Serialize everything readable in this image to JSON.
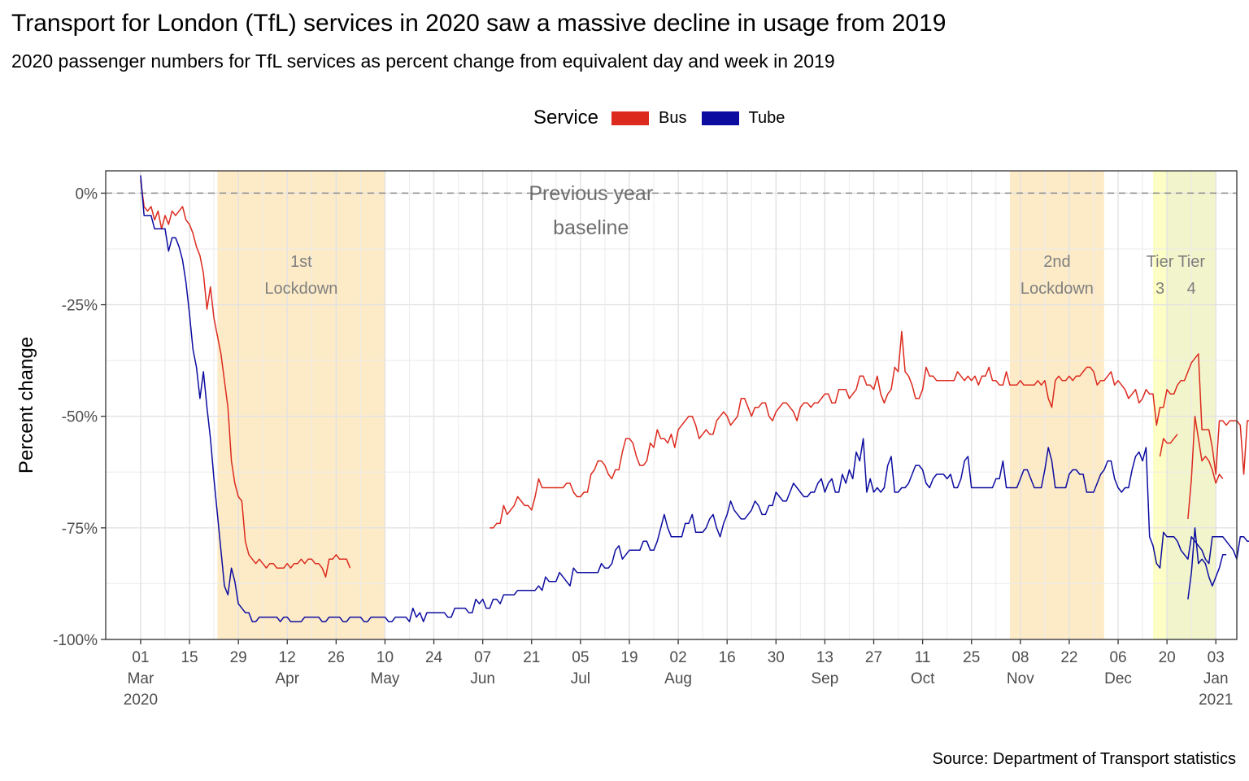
{
  "title": "Transport for London (TfL) services in 2020 saw a massive decline in usage from 2019",
  "subtitle": "2020 passenger numbers for TfL services as percent change from equivalent day and week in 2019",
  "legend": {
    "title": "Service",
    "items": [
      {
        "label": "Bus",
        "color": "#dc2a1e"
      },
      {
        "label": "Tube",
        "color": "#0c0ca0"
      }
    ]
  },
  "source": "Source: Department of Transport statistics",
  "chart_data": {
    "type": "line",
    "ylabel": "Percent change",
    "ylim": [
      -100,
      5
    ],
    "y_ticks": [
      0,
      -25,
      -50,
      -75,
      -100
    ],
    "y_tick_labels": [
      "0%",
      "-25%",
      "-50%",
      "-75%",
      "-100%"
    ],
    "xlim": [
      "2020-02-20",
      "2021-01-09"
    ],
    "x_ticks": [
      {
        "date": "2020-03-01",
        "lines": [
          "01",
          "Mar",
          "2020"
        ]
      },
      {
        "date": "2020-03-15",
        "lines": [
          "15"
        ]
      },
      {
        "date": "2020-03-29",
        "lines": [
          "29"
        ]
      },
      {
        "date": "2020-04-12",
        "lines": [
          "12",
          "Apr"
        ]
      },
      {
        "date": "2020-04-26",
        "lines": [
          "26"
        ]
      },
      {
        "date": "2020-05-10",
        "lines": [
          "10",
          "May"
        ]
      },
      {
        "date": "2020-05-24",
        "lines": [
          "24"
        ]
      },
      {
        "date": "2020-06-07",
        "lines": [
          "07",
          "Jun"
        ]
      },
      {
        "date": "2020-06-21",
        "lines": [
          "21"
        ]
      },
      {
        "date": "2020-07-05",
        "lines": [
          "05",
          "Jul"
        ]
      },
      {
        "date": "2020-07-19",
        "lines": [
          "19"
        ]
      },
      {
        "date": "2020-08-02",
        "lines": [
          "02",
          "Aug"
        ]
      },
      {
        "date": "2020-08-16",
        "lines": [
          "16"
        ]
      },
      {
        "date": "2020-08-30",
        "lines": [
          "30"
        ]
      },
      {
        "date": "2020-09-13",
        "lines": [
          "13",
          "Sep"
        ]
      },
      {
        "date": "2020-09-27",
        "lines": [
          "27"
        ]
      },
      {
        "date": "2020-10-11",
        "lines": [
          "11",
          "Oct"
        ]
      },
      {
        "date": "2020-10-25",
        "lines": [
          "25"
        ]
      },
      {
        "date": "2020-11-08",
        "lines": [
          "08",
          "Nov"
        ]
      },
      {
        "date": "2020-11-22",
        "lines": [
          "22"
        ]
      },
      {
        "date": "2020-12-06",
        "lines": [
          "06",
          "Dec"
        ]
      },
      {
        "date": "2020-12-20",
        "lines": [
          "20"
        ]
      },
      {
        "date": "2021-01-03",
        "lines": [
          "03",
          "Jan",
          "2021"
        ]
      }
    ],
    "grid": true,
    "legend_position": "top",
    "baseline": {
      "y": 0,
      "label_lines": [
        "Previous year",
        "baseline"
      ],
      "label_date": "2020-07-08"
    },
    "periods": [
      {
        "start": "2020-03-23",
        "end": "2020-05-10",
        "color": "#fdebc7",
        "label_lines": [
          "1st",
          "Lockdown"
        ]
      },
      {
        "start": "2020-11-05",
        "end": "2020-12-02",
        "color": "#fdebc7",
        "label_lines": [
          "2nd",
          "Lockdown"
        ]
      },
      {
        "start": "2020-12-16",
        "end": "2020-12-20",
        "color": "#fdfdc6",
        "label_lines": [
          "Tier",
          "3"
        ]
      },
      {
        "start": "2020-12-20",
        "end": "2021-01-03",
        "color": "#f2f5cb",
        "label_lines": [
          "Tier",
          "4"
        ]
      }
    ],
    "series": [
      {
        "name": "Bus",
        "color": "#dc2a1e",
        "segments": [
          {
            "start": "2020-03-01",
            "values": [
              3,
              -3,
              -4,
              -3,
              -6,
              -4,
              -8,
              -5,
              -7,
              -4,
              -5,
              -4,
              -3,
              -6,
              -7,
              -9,
              -12,
              -14,
              -18,
              -26,
              -21,
              -28,
              -32,
              -36,
              -42,
              -48,
              -60,
              -65,
              -68,
              -69,
              -78,
              -81,
              -82,
              -83,
              -82,
              -83,
              -84,
              -83,
              -83,
              -84,
              -84,
              -84,
              -83,
              -84,
              -83,
              -83,
              -82,
              -83,
              -82,
              -82,
              -83,
              -83,
              -84,
              -86,
              -82,
              -82,
              -81,
              -82,
              -82,
              -82,
              -84
            ]
          },
          {
            "start": "2020-06-09",
            "values": [
              -75,
              -75,
              -74,
              -74,
              -70,
              -72,
              -71,
              -70,
              -68,
              -69,
              -70,
              -70,
              -71,
              -68,
              -64,
              -66,
              -66,
              -66,
              -66,
              -66,
              -66,
              -66,
              -65,
              -65,
              -67,
              -68,
              -68,
              -67,
              -67,
              -63,
              -62,
              -60,
              -60,
              -61,
              -63,
              -64,
              -62,
              -62,
              -58,
              -55,
              -55,
              -56,
              -59,
              -61,
              -61,
              -60,
              -56,
              -57,
              -53,
              -55,
              -55,
              -56,
              -54,
              -57,
              -53,
              -52,
              -51,
              -50,
              -50,
              -52,
              -55,
              -54,
              -53,
              -54,
              -54,
              -51,
              -50,
              -49,
              -50,
              -52,
              -51,
              -50,
              -46,
              -46,
              -48,
              -50,
              -48,
              -48,
              -47,
              -47,
              -50,
              -51,
              -49,
              -48,
              -47,
              -47,
              -48,
              -49,
              -51,
              -48,
              -47,
              -47,
              -48,
              -47,
              -47,
              -46,
              -45,
              -45,
              -47,
              -47,
              -44,
              -44,
              -44,
              -46,
              -45,
              -44,
              -41,
              -41,
              -43,
              -43,
              -44,
              -41,
              -45,
              -47,
              -45,
              -44,
              -39,
              -40,
              -31,
              -40,
              -41,
              -43,
              -46,
              -46,
              -44,
              -39,
              -41,
              -41,
              -42,
              -42,
              -42,
              -42,
              -42,
              -42,
              -40,
              -41,
              -42,
              -41,
              -42,
              -41,
              -43,
              -41,
              -41,
              -39,
              -42,
              -42,
              -43,
              -43,
              -40,
              -43,
              -43,
              -43,
              -42,
              -43,
              -43,
              -43,
              -43,
              -42,
              -43,
              -42,
              -46,
              -48,
              -42,
              -41,
              -42,
              -42,
              -41,
              -42,
              -41,
              -41,
              -40,
              -39,
              -39,
              -40,
              -43,
              -42,
              -42,
              -41,
              -40,
              -43,
              -42,
              -43,
              -44,
              -46,
              -45,
              -44,
              -47,
              -46,
              -44,
              -45,
              -45,
              -52,
              -48,
              -48,
              -44,
              -45,
              -45,
              -43,
              -42,
              -42,
              -40,
              -38,
              -37,
              -36,
              -53,
              -53,
              -53,
              -57,
              -63,
              -51,
              -51,
              -52,
              -51,
              -51,
              -51,
              -52,
              -63,
              -51,
              -51,
              -51,
              -56,
              -62,
              -51,
              -51,
              -52,
              -51,
              -51,
              -51,
              -52,
              -52,
              -52,
              -57,
              -61,
              -51,
              -52,
              -48,
              -47,
              -44,
              -45,
              -42,
              -43,
              -44,
              -42,
              -43,
              -43,
              -41,
              -44,
              -42,
              -42,
              -41,
              -44,
              -41,
              -41,
              -41,
              -45,
              -44,
              -40,
              -43,
              -48,
              -46,
              -47,
              -51
            ]
          },
          {
            "start": "2020-12-18",
            "values": [
              -59,
              -55,
              -56,
              -56,
              -55,
              -54
            ]
          },
          {
            "start": "2020-12-26",
            "values": [
              -73,
              -64,
              -50,
              -55,
              -60,
              -59,
              -60,
              -62,
              -65,
              -63,
              -64
            ]
          }
        ]
      },
      {
        "name": "Tube",
        "color": "#0c0ca0",
        "segments": [
          {
            "start": "2020-03-01",
            "values": [
              4,
              -5,
              -5,
              -5,
              -8,
              -8,
              -8,
              -8,
              -13,
              -10,
              -10,
              -12,
              -15,
              -20,
              -27,
              -35,
              -39,
              -46,
              -40,
              -48,
              -55,
              -64,
              -72,
              -80,
              -88,
              -90,
              -84,
              -87,
              -92,
              -93,
              -94,
              -94,
              -96,
              -96,
              -95,
              -95,
              -95,
              -95,
              -95,
              -95,
              -96,
              -95,
              -95,
              -96,
              -96,
              -96,
              -96,
              -95,
              -95,
              -95,
              -95,
              -95,
              -96,
              -96,
              -95,
              -95,
              -95,
              -95,
              -96,
              -96,
              -95,
              -95,
              -95,
              -95,
              -96,
              -96,
              -95,
              -95,
              -95,
              -95,
              -95,
              -96,
              -96,
              -95,
              -95,
              -95,
              -95,
              -96,
              -93,
              -95,
              -94,
              -96,
              -94,
              -94,
              -94,
              -94,
              -94,
              -94,
              -95,
              -95,
              -93,
              -93,
              -93,
              -93,
              -94,
              -94,
              -91,
              -92,
              -91,
              -93,
              -93,
              -91,
              -91,
              -92,
              -90,
              -90,
              -90,
              -90,
              -89,
              -89,
              -89,
              -89,
              -89,
              -89,
              -88,
              -89,
              -86,
              -87,
              -87,
              -87,
              -85,
              -86,
              -87,
              -88,
              -84,
              -85,
              -85,
              -85,
              -85,
              -85,
              -85,
              -85,
              -83,
              -84,
              -84,
              -83,
              -80,
              -79,
              -82,
              -81,
              -80,
              -80,
              -80,
              -80,
              -78,
              -78,
              -80,
              -80,
              -78,
              -75,
              -72,
              -75,
              -77,
              -77,
              -77,
              -77,
              -74,
              -74,
              -72,
              -76,
              -76,
              -76,
              -75,
              -73,
              -72,
              -75,
              -77,
              -74,
              -72,
              -69,
              -71,
              -72,
              -73,
              -73,
              -72,
              -71,
              -69,
              -70,
              -72,
              -72,
              -70,
              -70,
              -67,
              -68,
              -69,
              -69,
              -67,
              -65,
              -66,
              -67,
              -68,
              -68,
              -67,
              -67,
              -65,
              -64,
              -67,
              -65,
              -64,
              -67,
              -67,
              -63,
              -65,
              -62,
              -64,
              -58,
              -60,
              -55,
              -67,
              -64,
              -67,
              -66,
              -67,
              -66,
              -61,
              -59,
              -67,
              -67,
              -66,
              -66,
              -65,
              -63,
              -61,
              -61,
              -62,
              -65,
              -66,
              -64,
              -63,
              -63,
              -63,
              -64,
              -63,
              -66,
              -66,
              -64,
              -60,
              -59,
              -66,
              -66,
              -66,
              -66,
              -66,
              -66,
              -66,
              -64,
              -64,
              -60,
              -66,
              -66,
              -66,
              -66,
              -64,
              -62,
              -62,
              -64,
              -66,
              -66,
              -66,
              -62,
              -57,
              -60,
              -66,
              -66,
              -66,
              -66,
              -63,
              -62,
              -62,
              -63,
              -63,
              -67,
              -67,
              -67,
              -65,
              -63,
              -62,
              -60,
              -60,
              -64,
              -66,
              -67,
              -66,
              -66,
              -62,
              -59,
              -58,
              -60,
              -57,
              -77,
              -79,
              -83,
              -84,
              -76,
              -77,
              -77,
              -77,
              -78,
              -80,
              -81,
              -82,
              -77,
              -78,
              -79,
              -80,
              -82,
              -83,
              -77,
              -77,
              -77,
              -77,
              -78,
              -79,
              -80,
              -82,
              -77,
              -77,
              -78,
              -78,
              -79,
              -80,
              -81,
              -79,
              -75,
              -70,
              -66,
              -66,
              -65,
              -62,
              -60,
              -59,
              -58,
              -57,
              -66,
              -66,
              -65,
              -65,
              -64,
              -61,
              -60,
              -59,
              -57,
              -60,
              -62,
              -64,
              -64,
              -66,
              -69,
              -70,
              -71,
              -71,
              -71,
              -72,
              -68,
              -76,
              -81,
              -78,
              -79,
              -79,
              -80,
              -80
            ]
          },
          {
            "start": "2020-12-26",
            "values": [
              -91,
              -85,
              -75,
              -83,
              -82,
              -83,
              -86,
              -88,
              -86,
              -84,
              -81,
              -81
            ]
          }
        ]
      }
    ]
  }
}
